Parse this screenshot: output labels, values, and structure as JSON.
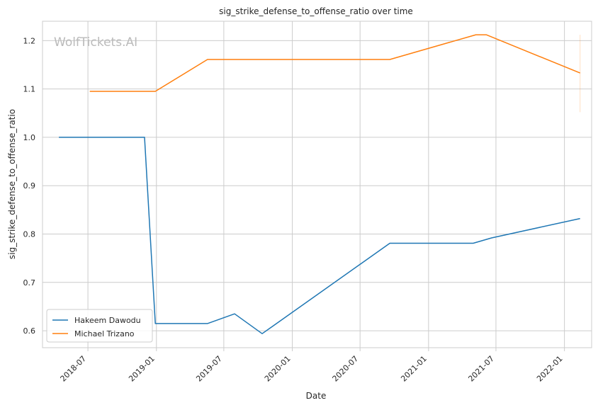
{
  "watermark": "WolfTickets.AI",
  "chart_data": {
    "type": "line",
    "title": "sig_strike_defense_to_offense_ratio over time",
    "xlabel": "Date",
    "ylabel": "sig_strike_defense_to_offense_ratio",
    "xlim": [
      "2018-03-01",
      "2022-03-15"
    ],
    "ylim": [
      0.565,
      1.24
    ],
    "x_ticks": [
      "2018-07",
      "2019-01",
      "2019-07",
      "2020-01",
      "2020-07",
      "2021-01",
      "2021-07",
      "2022-01"
    ],
    "y_ticks": [
      0.6,
      0.7,
      0.8,
      0.9,
      1.0,
      1.1,
      1.2
    ],
    "y_tick_labels": [
      "0.6",
      "0.7",
      "0.8",
      "0.9",
      "1.0",
      "1.1",
      "1.2"
    ],
    "grid": true,
    "legend_position": "lower-left",
    "series": [
      {
        "name": "Hakeem Dawodu",
        "color": "#1f77b4",
        "points": [
          {
            "x": "2018-04-14",
            "y": 1.0
          },
          {
            "x": "2018-11-30",
            "y": 1.0
          },
          {
            "x": "2018-12-29",
            "y": 0.615
          },
          {
            "x": "2019-05-18",
            "y": 0.615
          },
          {
            "x": "2019-07-30",
            "y": 0.635
          },
          {
            "x": "2019-10-12",
            "y": 0.594
          },
          {
            "x": "2020-09-19",
            "y": 0.781
          },
          {
            "x": "2021-05-01",
            "y": 0.781
          },
          {
            "x": "2021-06-19",
            "y": 0.792
          },
          {
            "x": "2022-02-12",
            "y": 0.832
          }
        ]
      },
      {
        "name": "Michael Trizano",
        "color": "#ff7f0e",
        "points": [
          {
            "x": "2018-07-06",
            "y": 1.095
          },
          {
            "x": "2018-12-29",
            "y": 1.095
          },
          {
            "x": "2019-05-18",
            "y": 1.161
          },
          {
            "x": "2020-09-19",
            "y": 1.161
          },
          {
            "x": "2021-05-08",
            "y": 1.212
          },
          {
            "x": "2021-06-05",
            "y": 1.212
          },
          {
            "x": "2022-02-12",
            "y": 1.133
          }
        ],
        "error_bar": {
          "x": "2022-02-12",
          "low": 1.052,
          "high": 1.212
        }
      }
    ]
  }
}
